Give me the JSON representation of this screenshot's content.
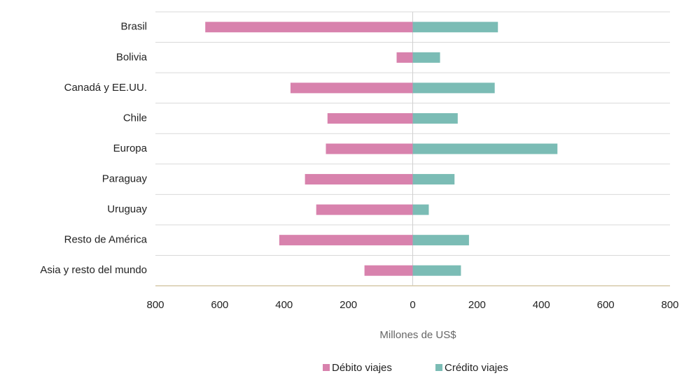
{
  "chart_data": {
    "type": "diverging-bar",
    "axis_title": "Millones de US$",
    "categories": [
      "Brasil",
      "Bolivia",
      "Canadá y EE.UU.",
      "Chile",
      "Europa",
      "Paraguay",
      "Uruguay",
      "Resto de América",
      "Asia y resto del mundo"
    ],
    "series": [
      {
        "name": "Débito viajes",
        "color": "#d882ad",
        "values": [
          -645,
          -50,
          -380,
          -265,
          -270,
          -335,
          -300,
          -415,
          -150
        ]
      },
      {
        "name": "Crédito viajes",
        "color": "#7bbcb5",
        "values": [
          265,
          85,
          255,
          140,
          450,
          130,
          50,
          175,
          150
        ]
      }
    ],
    "xlim": [
      -800,
      800
    ],
    "xticks": [
      {
        "value": -800,
        "label": "800"
      },
      {
        "value": -600,
        "label": "600"
      },
      {
        "value": -400,
        "label": "400"
      },
      {
        "value": -200,
        "label": "200"
      },
      0,
      200,
      400,
      600,
      800
    ],
    "legend": "bottom"
  }
}
